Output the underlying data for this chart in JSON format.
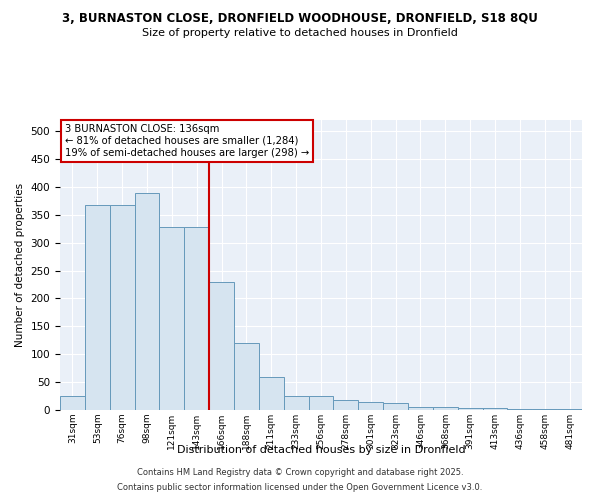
{
  "title_line1": "3, BURNASTON CLOSE, DRONFIELD WOODHOUSE, DRONFIELD, S18 8QU",
  "title_line2": "Size of property relative to detached houses in Dronfield",
  "xlabel": "Distribution of detached houses by size in Dronfield",
  "ylabel": "Number of detached properties",
  "footer_line1": "Contains HM Land Registry data © Crown copyright and database right 2025.",
  "footer_line2": "Contains public sector information licensed under the Open Government Licence v3.0.",
  "annotation_line1": "3 BURNASTON CLOSE: 136sqm",
  "annotation_line2": "← 81% of detached houses are smaller (1,284)",
  "annotation_line3": "19% of semi-detached houses are larger (298) →",
  "bar_color": "#d6e4f0",
  "bar_edge_color": "#6699bb",
  "vline_color": "#cc0000",
  "background_color": "#eaf0f8",
  "grid_color": "#c8d8e8",
  "categories": [
    "31sqm",
    "53sqm",
    "76sqm",
    "98sqm",
    "121sqm",
    "143sqm",
    "166sqm",
    "188sqm",
    "211sqm",
    "233sqm",
    "256sqm",
    "278sqm",
    "301sqm",
    "323sqm",
    "346sqm",
    "368sqm",
    "391sqm",
    "413sqm",
    "436sqm",
    "458sqm",
    "481sqm"
  ],
  "values": [
    25,
    367,
    367,
    390,
    328,
    328,
    230,
    120,
    60,
    25,
    25,
    18,
    15,
    12,
    5,
    5,
    3,
    3,
    2,
    2,
    2
  ],
  "vline_x": 5.5,
  "ylim": [
    0,
    520
  ],
  "yticks": [
    0,
    50,
    100,
    150,
    200,
    250,
    300,
    350,
    400,
    450,
    500
  ]
}
